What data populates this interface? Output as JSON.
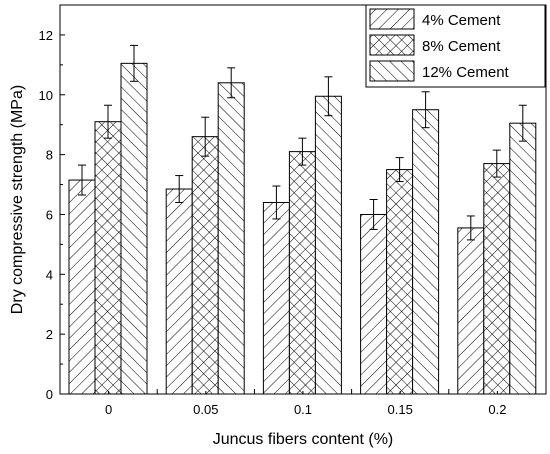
{
  "chart_data": {
    "type": "bar",
    "xlabel": "Juncus fibers content (%)",
    "ylabel": "Dry compressive strength (MPa)",
    "categories": [
      "0",
      "0.05",
      "0.1",
      "0.15",
      "0.2"
    ],
    "ylim": [
      0,
      13
    ],
    "yticks": [
      0,
      2,
      4,
      6,
      8,
      10,
      12
    ],
    "grid": false,
    "legend": "top-right",
    "series": [
      {
        "name": "4% Cement",
        "pattern": "diagonal-forward",
        "values": [
          7.15,
          6.85,
          6.4,
          6.0,
          5.55
        ],
        "errors": [
          0.5,
          0.45,
          0.55,
          0.5,
          0.4
        ]
      },
      {
        "name": "8% Cement",
        "pattern": "crosshatch",
        "values": [
          9.1,
          8.6,
          8.1,
          7.5,
          7.7
        ],
        "errors": [
          0.55,
          0.65,
          0.45,
          0.4,
          0.45
        ]
      },
      {
        "name": "12% Cement",
        "pattern": "diagonal-backward",
        "values": [
          11.05,
          10.4,
          9.95,
          9.5,
          9.05
        ],
        "errors": [
          0.6,
          0.5,
          0.65,
          0.6,
          0.6
        ]
      }
    ],
    "colors": {
      "bar_fill": "#ffffff",
      "stroke": "#000000"
    }
  }
}
